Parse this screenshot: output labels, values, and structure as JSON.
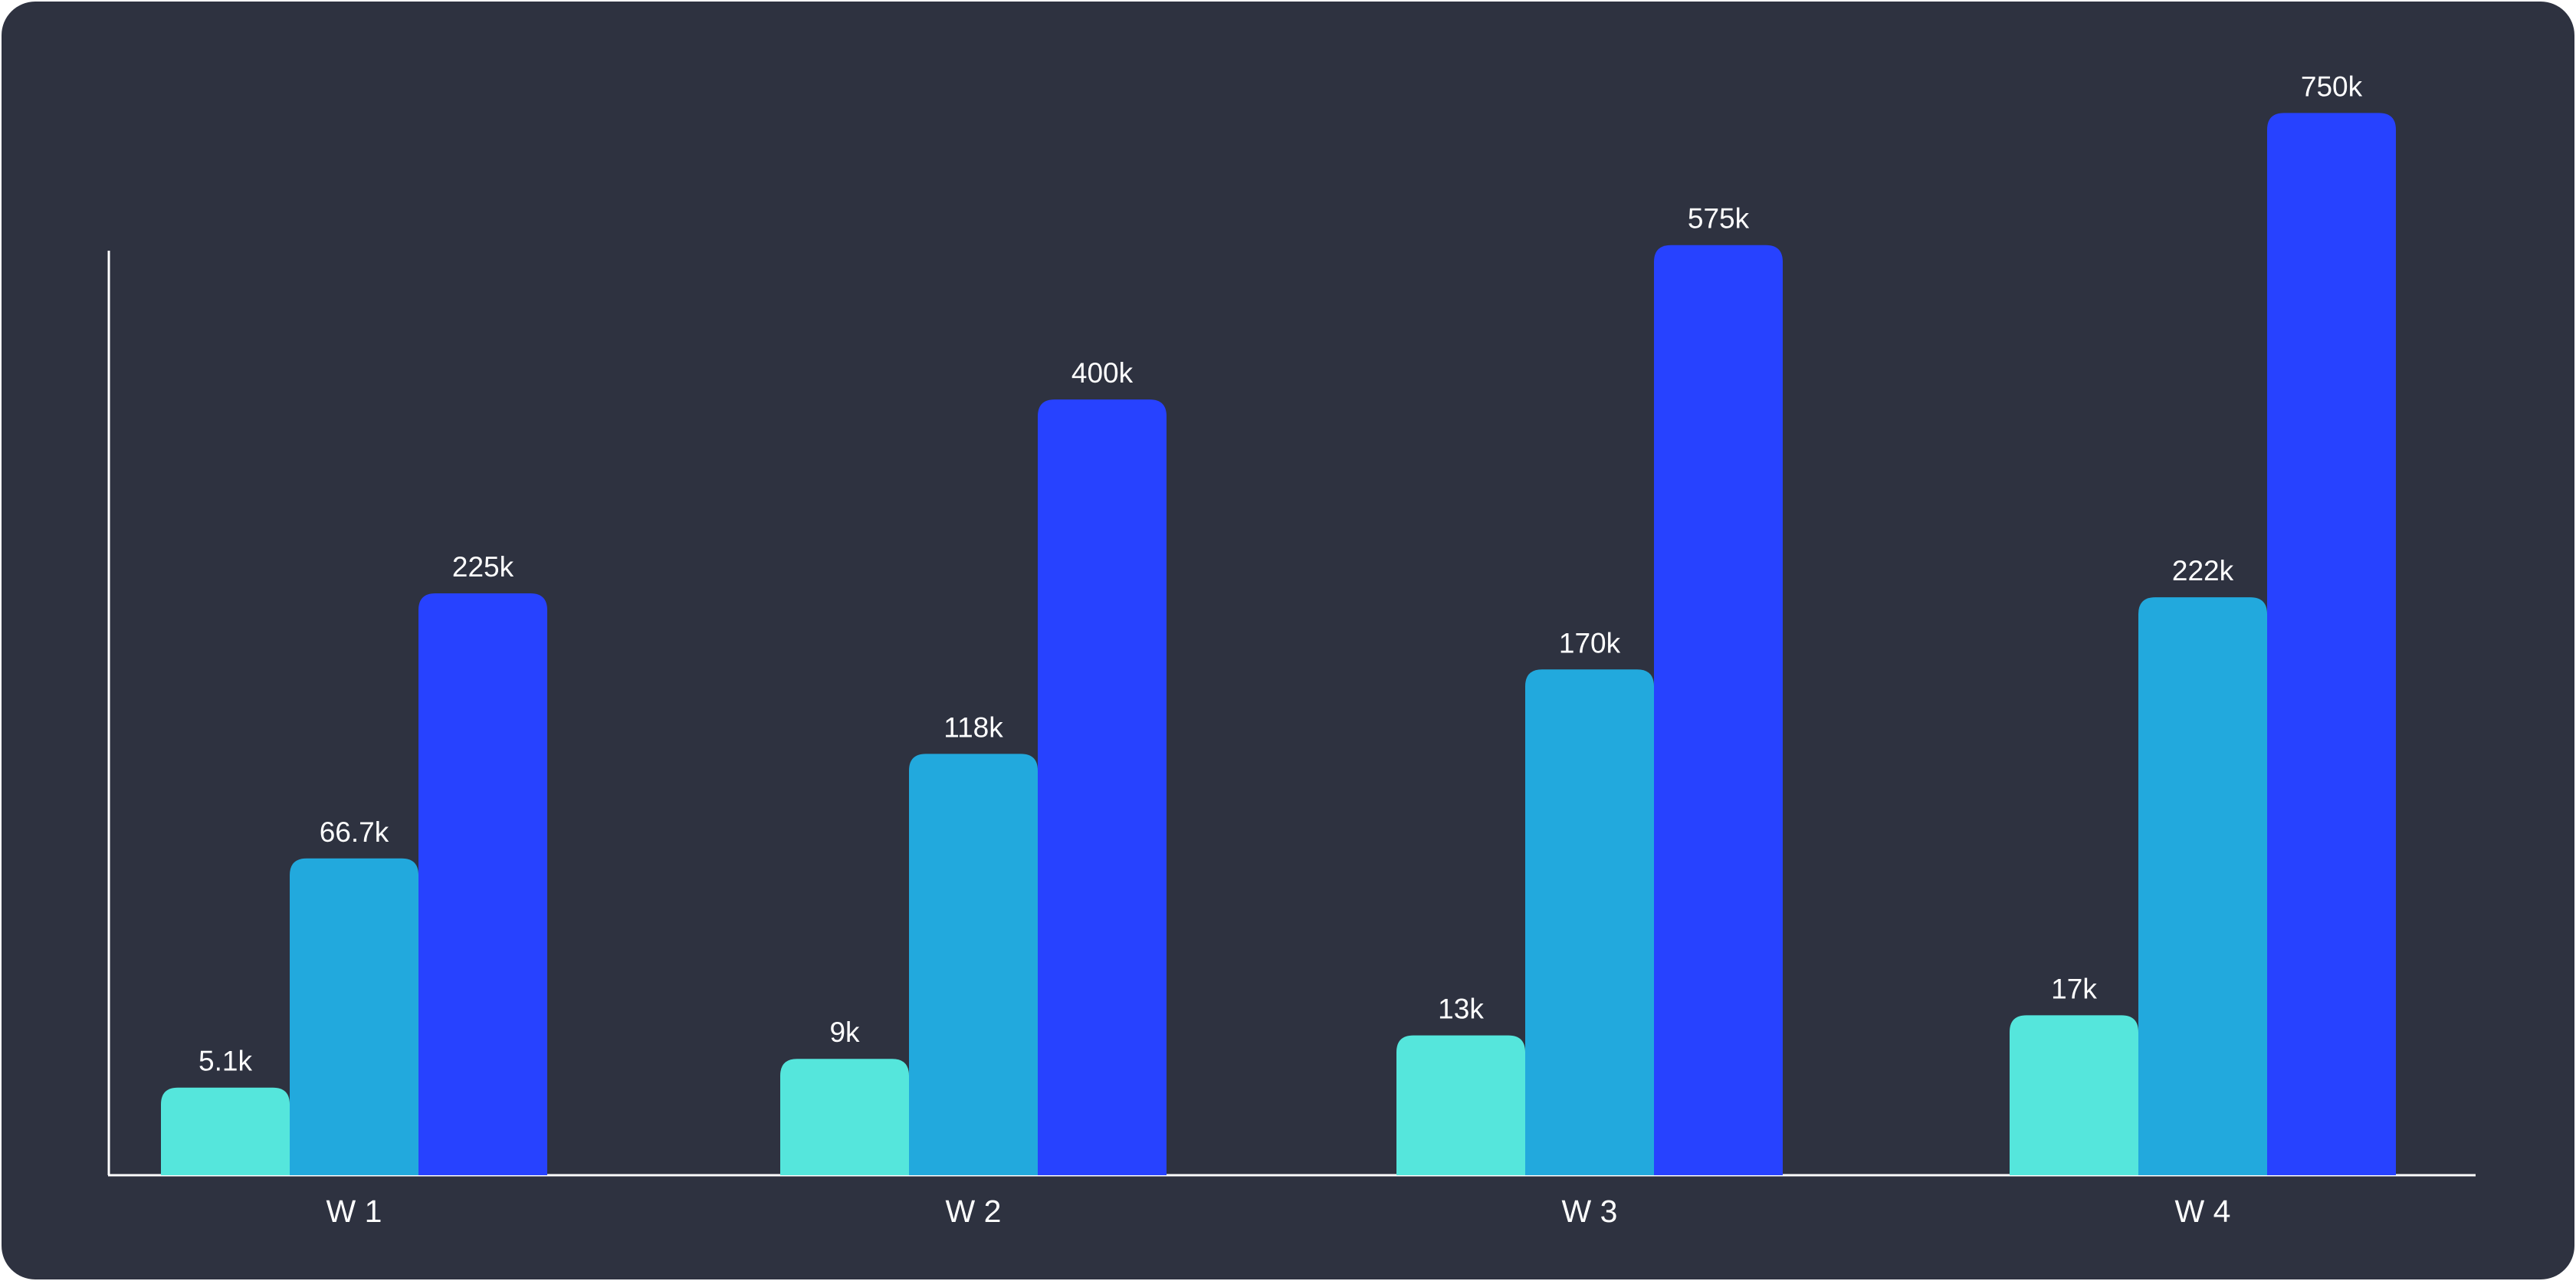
{
  "chart_data": {
    "type": "bar",
    "title": "",
    "xlabel": "",
    "ylabel": "",
    "categories": [
      "W 1",
      "W 2",
      "W 3",
      "W 4"
    ],
    "series": [
      {
        "values": [
          5100,
          9000,
          13000,
          17000
        ],
        "labels": [
          "5.1k",
          "9k",
          "13k",
          "17k"
        ],
        "color": "#55e6dc"
      },
      {
        "values": [
          66700,
          118000,
          170000,
          222000
        ],
        "labels": [
          "66.7k",
          "118k",
          "170k",
          "222k"
        ],
        "color": "#22a9dd"
      },
      {
        "values": [
          225000,
          400000,
          575000,
          750000
        ],
        "labels": [
          "225k",
          "400k",
          "575k",
          "750k"
        ],
        "color": "#2742ff"
      }
    ],
    "bar_value_scale": "sqrt",
    "grid": false,
    "legend": "none"
  },
  "colors": {
    "background": "#2e3240",
    "axis": "#ffffff",
    "text": "#ffffff"
  }
}
